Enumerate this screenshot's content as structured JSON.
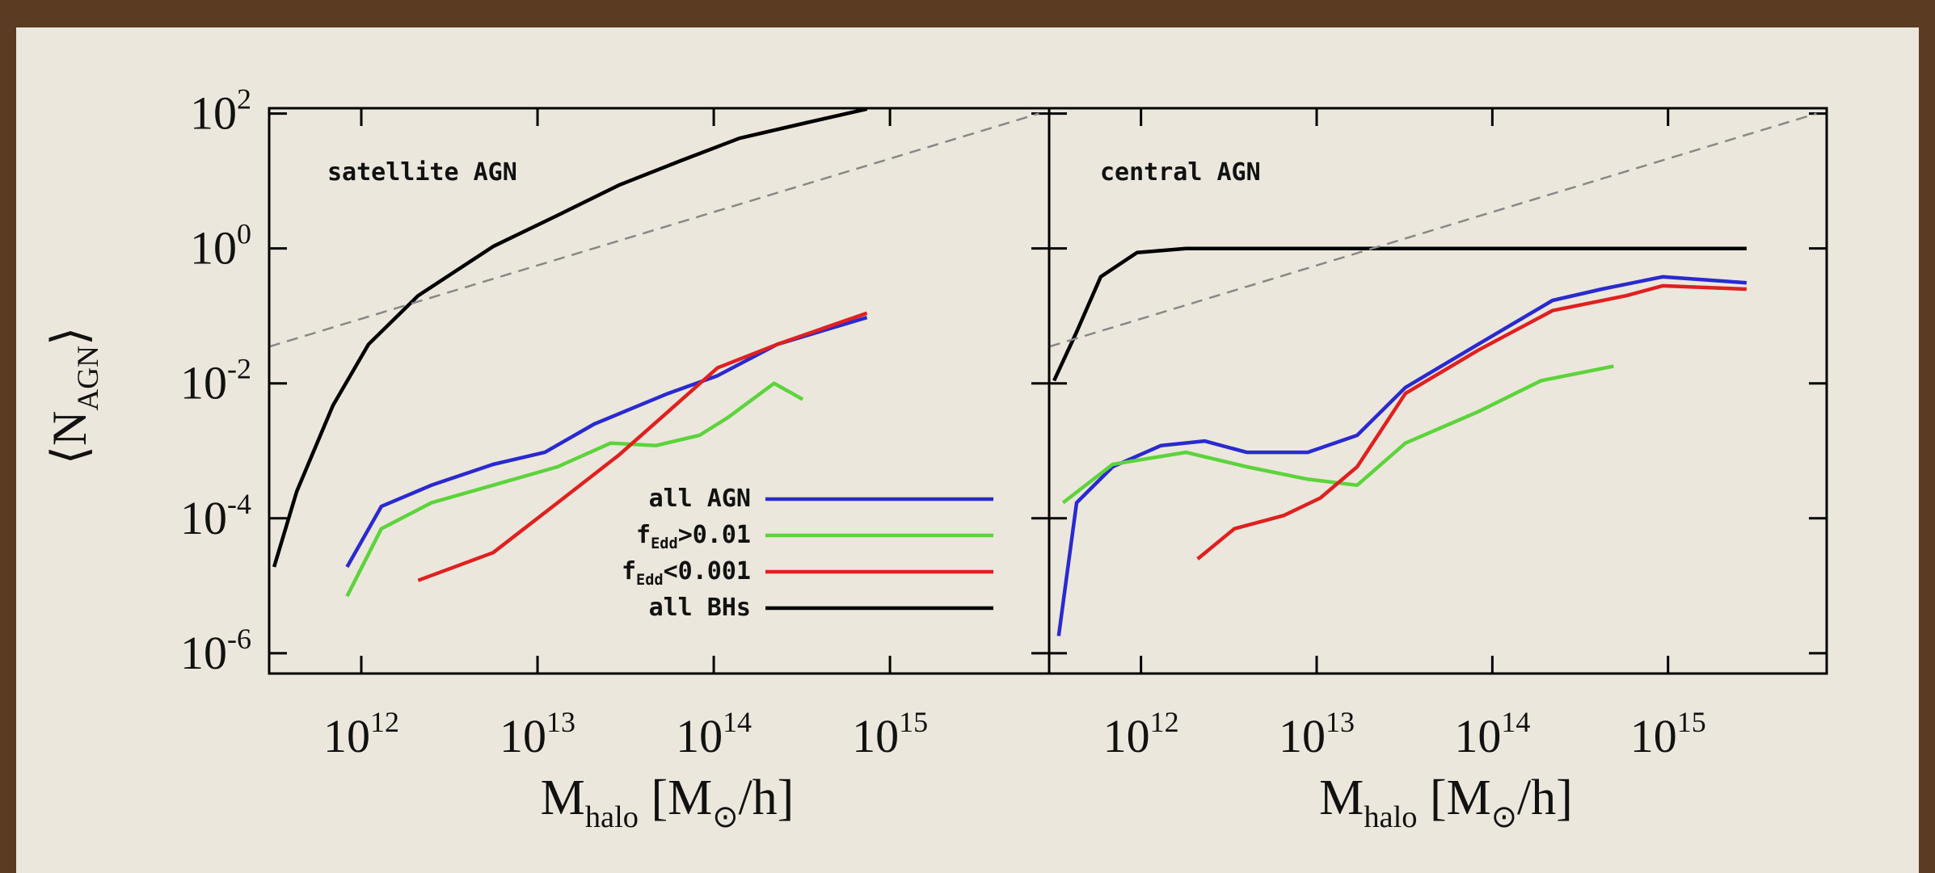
{
  "chart_data": [
    {
      "type": "line",
      "annotation": "satellite AGN",
      "ylabel": "⟨N_{AGN}⟩",
      "xlabel": "M_{halo} [M_{⊙}/h]",
      "log_x": true,
      "log_y": true,
      "legend": "center right",
      "xlim": [
        300000000000,
        8000000000000000
      ],
      "ylim": [
        5e-07,
        120
      ],
      "xticks": [
        {
          "value": 1000000000000,
          "label": "10^{12}"
        },
        {
          "value": 10000000000000,
          "label": "10^{13}"
        },
        {
          "value": 100000000000000,
          "label": "10^{14}"
        },
        {
          "value": 1000000000000000,
          "label": "10^{15}"
        }
      ],
      "yticks": [
        {
          "value": 1e-06,
          "label": "10^{-6}"
        },
        {
          "value": 0.0001,
          "label": "10^{-4}"
        },
        {
          "value": 0.01,
          "label": "10^{-2}"
        },
        {
          "value": 1,
          "label": "10^{0}"
        },
        {
          "value": 100,
          "label": "10^{2}"
        }
      ],
      "series": [
        {
          "name": "all AGN",
          "color": "#2a2ad0",
          "x": [
            830000000000,
            1300000000000,
            2500000000000,
            5600000000000,
            11000000000000,
            21000000000000,
            55000000000000,
            105000000000000,
            230000000000000,
            740000000000000
          ],
          "values": [
            1.9e-05,
            0.00015,
            0.00031,
            0.00063,
            0.00095,
            0.0025,
            0.0071,
            0.013,
            0.038,
            0.095
          ]
        },
        {
          "name": "f_{Edd}>0.01",
          "color": "#5cd43c",
          "x": [
            830000000000,
            1300000000000,
            2500000000000,
            5600000000000,
            13000000000000,
            26000000000000,
            47000000000000,
            83000000000000,
            120000000000000,
            220000000000000,
            320000000000000
          ],
          "values": [
            7e-06,
            7e-05,
            0.00017,
            0.00031,
            0.00058,
            0.0013,
            0.0012,
            0.0017,
            0.0031,
            0.01,
            0.0058
          ]
        },
        {
          "name": "f_{Edd}<0.001",
          "color": "#e02020",
          "x": [
            2100000000000,
            5600000000000,
            13000000000000,
            29000000000000,
            55000000000000,
            105000000000000,
            230000000000000,
            740000000000000
          ],
          "values": [
            1.2e-05,
            3.1e-05,
            0.00017,
            0.00087,
            0.0038,
            0.017,
            0.038,
            0.11
          ]
        },
        {
          "name": "all BHs",
          "color": "#000000",
          "x": [
            320000000000,
            430000000000,
            690000000000,
            1100000000000,
            2100000000000,
            5600000000000,
            13000000000000,
            29000000000000,
            65000000000000,
            140000000000000,
            320000000000000,
            740000000000000
          ],
          "values": [
            1.9e-05,
            0.00025,
            0.0047,
            0.038,
            0.2,
            1.07,
            3.1,
            8.7,
            20,
            43,
            71,
            117
          ]
        },
        {
          "color": "#888888",
          "dashed": true,
          "x": [
            300000000000,
            7000000000000000
          ],
          "values": [
            0.035,
            100
          ]
        }
      ]
    },
    {
      "type": "line",
      "annotation": "central AGN",
      "xlabel": "M_{halo} [M_{⊙}/h]",
      "log_x": true,
      "log_y": true,
      "show_ytick_labels": false,
      "xlim": [
        300000000000,
        8000000000000000
      ],
      "ylim": [
        5e-07,
        120
      ],
      "xticks": [
        {
          "value": 1000000000000,
          "label": "10^{12}"
        },
        {
          "value": 10000000000000,
          "label": "10^{13}"
        },
        {
          "value": 100000000000000,
          "label": "10^{14}"
        },
        {
          "value": 1000000000000000,
          "label": "10^{15}"
        }
      ],
      "yticks": [
        1e-06,
        0.0001,
        0.01,
        1,
        100
      ],
      "series": [
        {
          "color": "#2a2ad0",
          "x": [
            340000000000,
            430000000000,
            690000000000,
            1300000000000,
            2300000000000,
            4000000000000,
            8900000000000,
            17000000000000,
            32000000000000,
            83000000000000,
            220000000000000,
            420000000000000,
            930000000000000,
            2800000000000000
          ],
          "values": [
            1.8e-06,
            0.00017,
            0.00058,
            0.0012,
            0.0014,
            0.00095,
            0.00095,
            0.0017,
            0.0087,
            0.038,
            0.17,
            0.25,
            0.38,
            0.31
          ]
        },
        {
          "color": "#5cd43c",
          "x": [
            360000000000,
            690000000000,
            1800000000000,
            4000000000000,
            8900000000000,
            17000000000000,
            32000000000000,
            83000000000000,
            190000000000000,
            490000000000000
          ],
          "values": [
            0.00017,
            0.00063,
            0.00095,
            0.00058,
            0.00038,
            0.00031,
            0.0013,
            0.0038,
            0.011,
            0.018
          ]
        },
        {
          "color": "#e02020",
          "x": [
            2100000000000,
            3400000000000,
            6500000000000,
            10500000000000,
            17000000000000,
            32000000000000,
            83000000000000,
            220000000000000,
            580000000000000,
            930000000000000,
            2800000000000000
          ],
          "values": [
            2.5e-05,
            7e-05,
            0.00011,
            0.0002,
            0.00058,
            0.0071,
            0.031,
            0.12,
            0.2,
            0.28,
            0.25
          ]
        },
        {
          "color": "#000000",
          "x": [
            320000000000,
            430000000000,
            590000000000,
            950000000000,
            1800000000000,
            17000000000000,
            420000000000000,
            2800000000000000
          ],
          "values": [
            0.011,
            0.058,
            0.38,
            0.87,
            1.0,
            1.0,
            1.0,
            1.0
          ]
        },
        {
          "color": "#888888",
          "dashed": true,
          "x": [
            300000000000,
            7000000000000000
          ],
          "values": [
            0.035,
            100
          ]
        }
      ]
    }
  ]
}
